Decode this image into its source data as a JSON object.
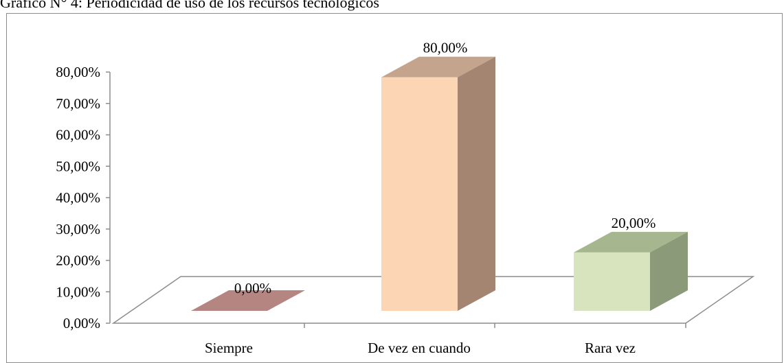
{
  "caption": "Gráfico N° 4: Periodicidad de uso de los recursos tecnológicos",
  "chart_data": {
    "type": "bar",
    "style": "3d-column",
    "categories": [
      "Siempre",
      "De vez en cuando",
      "Rara vez"
    ],
    "values": [
      0,
      80,
      20
    ],
    "data_labels": [
      "0,00%",
      "80,00%",
      "20,00%"
    ],
    "ylim": [
      0,
      80
    ],
    "y_ticks": [
      "0,00%",
      "10,00%",
      "20,00%",
      "30,00%",
      "40,00%",
      "50,00%",
      "60,00%",
      "70,00%",
      "80,00%"
    ],
    "y_tick_values": [
      0,
      10,
      20,
      30,
      40,
      50,
      60,
      70,
      80
    ],
    "xlabel": "",
    "ylabel": "",
    "grid": false,
    "legend": "none",
    "colors": [
      {
        "front": "#c28e8c",
        "side": "#a66e6c",
        "top": "#b58582"
      },
      {
        "front": "#fcd5b5",
        "side": "#a48571",
        "top": "#c4a48c"
      },
      {
        "front": "#d7e4bd",
        "side": "#8b9a78",
        "top": "#a6b68e"
      }
    ],
    "axis_color": "#8c8c8c"
  }
}
